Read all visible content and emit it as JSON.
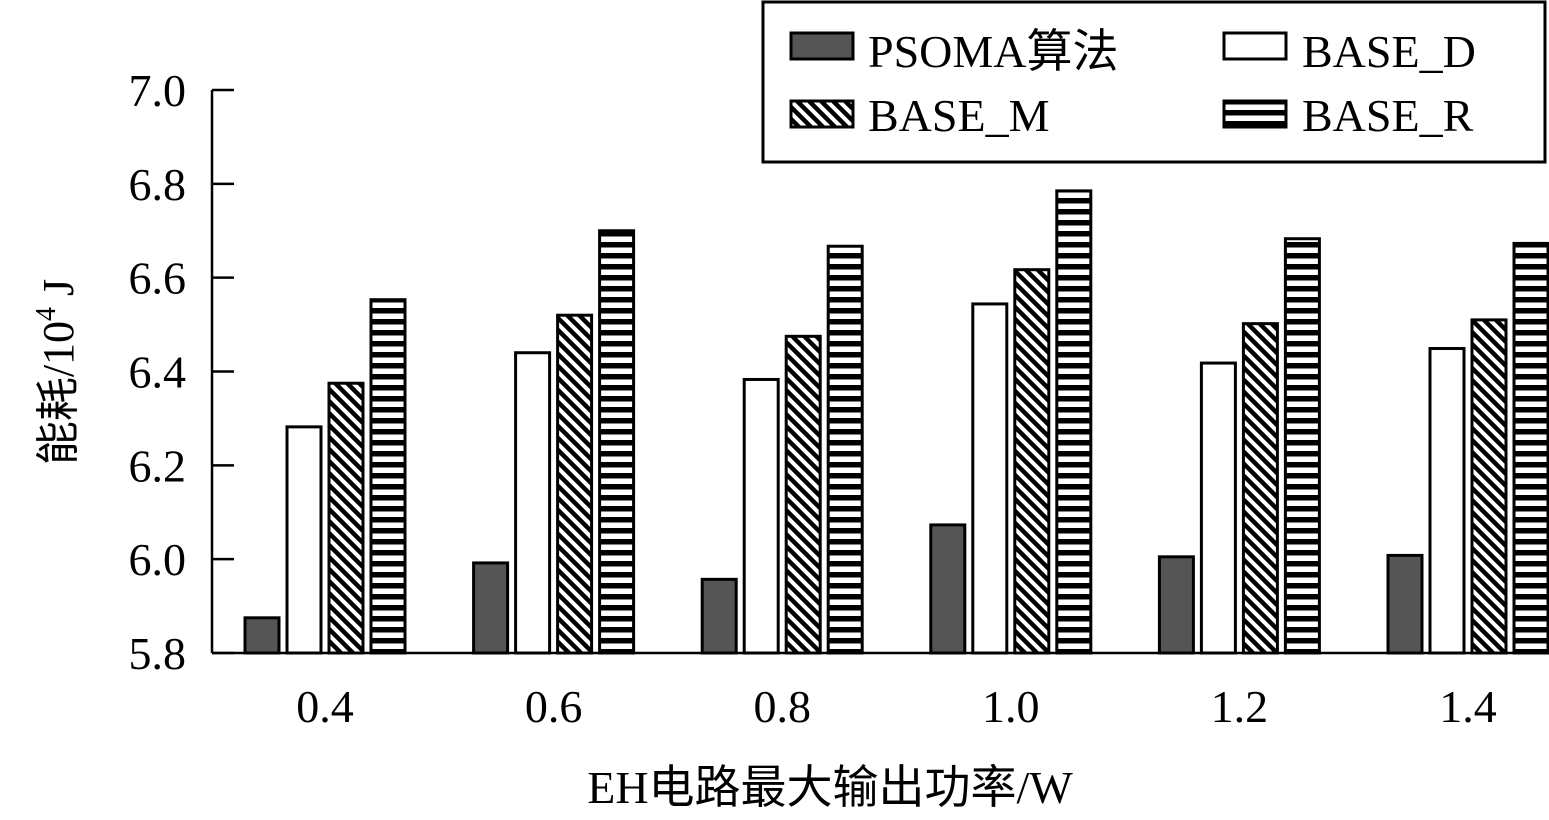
{
  "chart_data": {
    "type": "bar",
    "xlabel": "EH电路最大输出功率/W",
    "ylabel_main": "能耗/10",
    "ylabel_sup": "4",
    "ylabel_unit": " J",
    "categories": [
      "0.4",
      "0.6",
      "0.8",
      "1.0",
      "1.2",
      "1.4"
    ],
    "ylim": [
      5.8,
      7.0
    ],
    "yticks": [
      "5.8",
      "6.0",
      "6.2",
      "6.4",
      "6.6",
      "6.8",
      "7.0"
    ],
    "legend_position": "top-right",
    "grid": false,
    "series": [
      {
        "name": "PSOMA算法",
        "pattern": "solid-gray",
        "values": [
          5.875,
          5.992,
          5.957,
          6.073,
          6.005,
          6.008
        ]
      },
      {
        "name": "BASE_D",
        "pattern": "white",
        "values": [
          6.282,
          6.44,
          6.383,
          6.544,
          6.418,
          6.449
        ]
      },
      {
        "name": "BASE_M",
        "pattern": "diagonal-stripes",
        "values": [
          6.375,
          6.52,
          6.475,
          6.617,
          6.502,
          6.51
        ]
      },
      {
        "name": "BASE_R",
        "pattern": "horizontal-stripes",
        "values": [
          6.553,
          6.7,
          6.667,
          6.785,
          6.683,
          6.673
        ]
      }
    ],
    "colors": {
      "solid": "#555555",
      "stroke": "#000000",
      "fill_white": "#ffffff"
    }
  }
}
